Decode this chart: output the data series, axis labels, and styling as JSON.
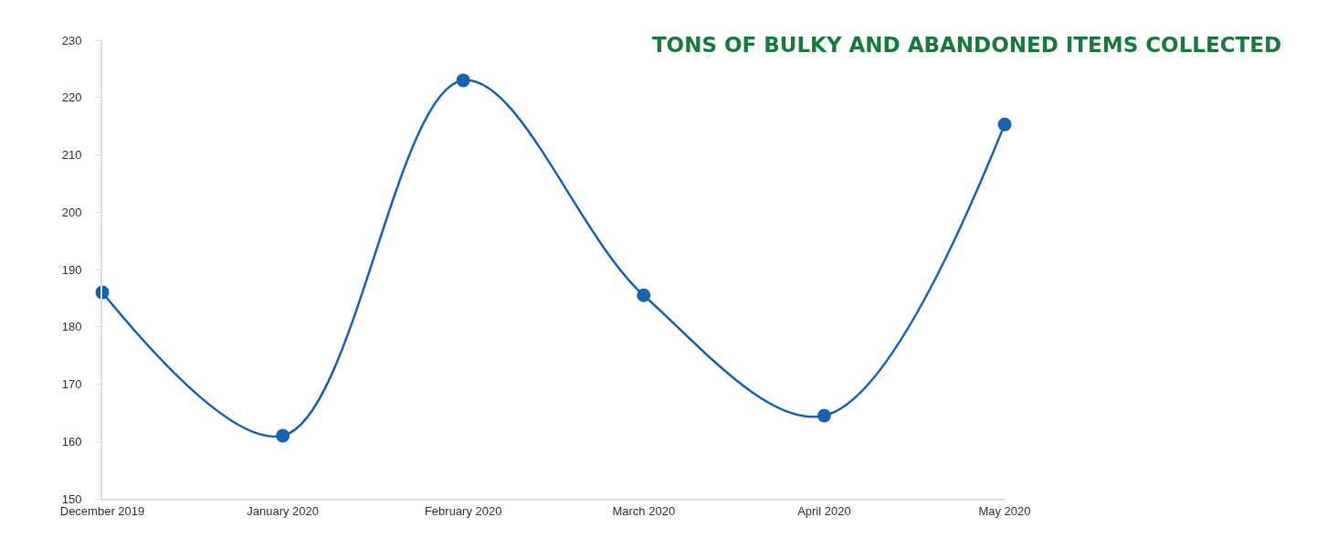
{
  "chart_data": {
    "type": "line",
    "title": "TONS OF BULKY AND ABANDONED ITEMS COLLECTED",
    "categories": [
      "December 2019",
      "January 2020",
      "February 2020",
      "March 2020",
      "April 2020",
      "May 2020"
    ],
    "series": [
      {
        "color": "#1763ad",
        "values": [
          186,
          161,
          223,
          185.5,
          164.5,
          215.3
        ]
      }
    ],
    "ylim": [
      150,
      230
    ],
    "yticks": [
      150,
      160,
      170,
      180,
      190,
      200,
      210,
      220,
      230
    ],
    "marker": "circle",
    "line_style": "solid"
  }
}
